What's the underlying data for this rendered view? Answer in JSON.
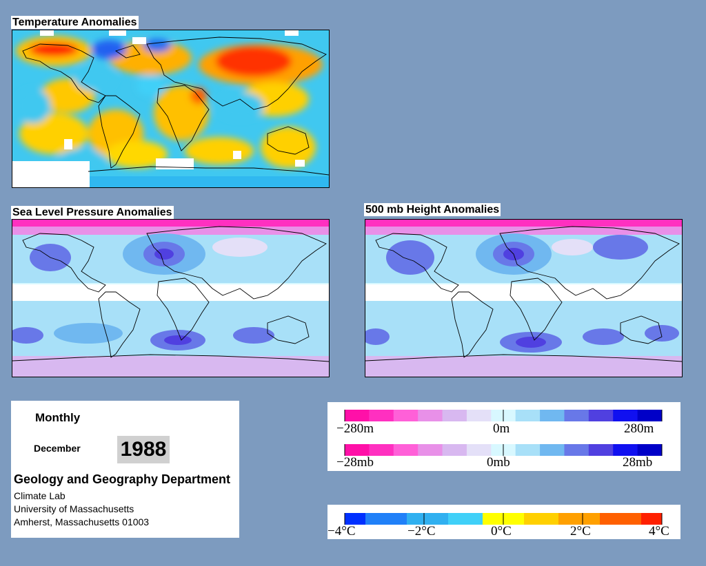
{
  "maps": {
    "temperature_title": "Temperature Anomalies",
    "slp_title": "Sea Level Pressure Anomalies",
    "height_title": "500 mb Height Anomalies"
  },
  "info": {
    "period": "Monthly",
    "month": "December",
    "year": "1988",
    "department": "Geology and Geography Department",
    "lab": "Climate Lab",
    "university": "University of Massachusetts",
    "address": "Amherst, Massachusetts 01003"
  },
  "legends": {
    "height": {
      "min": "−280m",
      "mid": "0m",
      "max": "280m"
    },
    "pressure": {
      "min": "−28mb",
      "mid": "0mb",
      "max": "28mb"
    },
    "temperature": {
      "t1": "−4°C",
      "t2": "−2°C",
      "t3": "0°C",
      "t4": "2°C",
      "t5": "4°C"
    }
  },
  "colors": {
    "background": "#7d9bbf",
    "anomaly_scale": [
      "#ff10a8",
      "#ff30c0",
      "#ff60d8",
      "#e890e8",
      "#d8b8f0",
      "#e4e0f8",
      "#d8f8ff",
      "#a8e0f8",
      "#70b8f0",
      "#6878e8",
      "#5040e0",
      "#1010f0",
      "#0000c8"
    ],
    "temperature_scale": [
      "#0030ff",
      "#2080f8",
      "#30b0f0",
      "#40d0f8",
      "#ffff00",
      "#ffd000",
      "#ffa000",
      "#ff6000",
      "#ff2000"
    ]
  }
}
